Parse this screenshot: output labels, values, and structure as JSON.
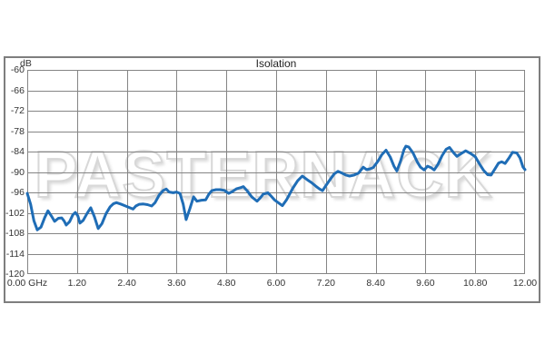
{
  "chart": {
    "title": "Isolation",
    "y_axis_unit_label": "dB",
    "watermark": "PASTERNACK"
  },
  "colors": {
    "line": "#1f6db6",
    "grid": "#858585",
    "frame_border": "#7e7e7e",
    "tick_text": "#333333",
    "title_text": "#1f1f1f",
    "watermark_outline": "#d8d8d8",
    "background": "#ffffff"
  },
  "chart_data": {
    "type": "line",
    "title": "Isolation",
    "xlabel": "GHz",
    "ylabel": "dB",
    "xlim": [
      0,
      12
    ],
    "ylim": [
      -120,
      -60
    ],
    "x_tick_step": 1.2,
    "y_tick_step": 6,
    "x_tick_labels": [
      "0.00 GHz",
      "1.20",
      "2.40",
      "3.60",
      "4.80",
      "6.00",
      "7.20",
      "8.40",
      "9.60",
      "10.80",
      "12.00"
    ],
    "y_tick_labels": [
      "-60",
      "-66",
      "-72",
      "-78",
      "-84",
      "-90",
      "-96",
      "-102",
      "-108",
      "-114",
      "-120"
    ],
    "grid": true,
    "legend": false,
    "series": [
      {
        "name": "Isolation",
        "color": "#1f6db6",
        "points": [
          [
            0.0,
            -96.3
          ],
          [
            0.08,
            -99.5
          ],
          [
            0.16,
            -104.3
          ],
          [
            0.24,
            -107.0
          ],
          [
            0.33,
            -106.2
          ],
          [
            0.42,
            -103.4
          ],
          [
            0.5,
            -101.4
          ],
          [
            0.58,
            -102.9
          ],
          [
            0.66,
            -104.5
          ],
          [
            0.75,
            -103.6
          ],
          [
            0.83,
            -103.5
          ],
          [
            0.89,
            -104.4
          ],
          [
            0.94,
            -105.6
          ],
          [
            1.02,
            -104.6
          ],
          [
            1.1,
            -102.6
          ],
          [
            1.16,
            -101.9
          ],
          [
            1.22,
            -102.9
          ],
          [
            1.27,
            -105.0
          ],
          [
            1.35,
            -104.2
          ],
          [
            1.44,
            -102.2
          ],
          [
            1.53,
            -100.5
          ],
          [
            1.62,
            -103.2
          ],
          [
            1.71,
            -106.6
          ],
          [
            1.8,
            -105.2
          ],
          [
            1.9,
            -102.2
          ],
          [
            2.0,
            -100.2
          ],
          [
            2.08,
            -99.3
          ],
          [
            2.15,
            -99.0
          ],
          [
            2.25,
            -99.4
          ],
          [
            2.35,
            -99.9
          ],
          [
            2.45,
            -100.4
          ],
          [
            2.55,
            -100.9
          ],
          [
            2.62,
            -100.0
          ],
          [
            2.7,
            -99.5
          ],
          [
            2.8,
            -99.4
          ],
          [
            2.9,
            -99.6
          ],
          [
            3.0,
            -100.0
          ],
          [
            3.08,
            -99.0
          ],
          [
            3.18,
            -96.8
          ],
          [
            3.28,
            -95.4
          ],
          [
            3.35,
            -95.0
          ],
          [
            3.42,
            -95.9
          ],
          [
            3.52,
            -96.1
          ],
          [
            3.6,
            -95.9
          ],
          [
            3.68,
            -96.3
          ],
          [
            3.76,
            -99.5
          ],
          [
            3.83,
            -104.0
          ],
          [
            3.92,
            -100.8
          ],
          [
            4.01,
            -97.3
          ],
          [
            4.09,
            -98.6
          ],
          [
            4.2,
            -98.3
          ],
          [
            4.3,
            -98.2
          ],
          [
            4.38,
            -96.5
          ],
          [
            4.45,
            -95.5
          ],
          [
            4.55,
            -95.2
          ],
          [
            4.65,
            -95.2
          ],
          [
            4.75,
            -95.4
          ],
          [
            4.86,
            -96.3
          ],
          [
            4.95,
            -95.7
          ],
          [
            5.05,
            -94.9
          ],
          [
            5.15,
            -94.6
          ],
          [
            5.21,
            -94.3
          ],
          [
            5.3,
            -95.5
          ],
          [
            5.41,
            -97.3
          ],
          [
            5.48,
            -98.0
          ],
          [
            5.54,
            -98.6
          ],
          [
            5.62,
            -97.6
          ],
          [
            5.69,
            -96.5
          ],
          [
            5.8,
            -96.1
          ],
          [
            5.88,
            -97.1
          ],
          [
            5.96,
            -98.2
          ],
          [
            6.05,
            -99.0
          ],
          [
            6.15,
            -99.9
          ],
          [
            6.25,
            -98.2
          ],
          [
            6.4,
            -94.8
          ],
          [
            6.52,
            -92.6
          ],
          [
            6.63,
            -91.2
          ],
          [
            6.75,
            -92.3
          ],
          [
            6.85,
            -93.1
          ],
          [
            6.95,
            -94.1
          ],
          [
            7.05,
            -95.0
          ],
          [
            7.12,
            -95.5
          ],
          [
            7.2,
            -94.0
          ],
          [
            7.3,
            -92.2
          ],
          [
            7.4,
            -90.6
          ],
          [
            7.49,
            -89.8
          ],
          [
            7.58,
            -90.3
          ],
          [
            7.68,
            -90.9
          ],
          [
            7.77,
            -91.2
          ],
          [
            7.88,
            -90.9
          ],
          [
            7.99,
            -90.3
          ],
          [
            8.1,
            -88.6
          ],
          [
            8.18,
            -89.3
          ],
          [
            8.26,
            -89.1
          ],
          [
            8.34,
            -88.7
          ],
          [
            8.45,
            -86.9
          ],
          [
            8.55,
            -84.9
          ],
          [
            8.65,
            -83.6
          ],
          [
            8.75,
            -85.6
          ],
          [
            8.84,
            -88.3
          ],
          [
            8.91,
            -89.7
          ],
          [
            9.0,
            -86.8
          ],
          [
            9.08,
            -83.5
          ],
          [
            9.13,
            -82.4
          ],
          [
            9.2,
            -82.7
          ],
          [
            9.3,
            -84.4
          ],
          [
            9.4,
            -87.0
          ],
          [
            9.48,
            -88.6
          ],
          [
            9.57,
            -89.4
          ],
          [
            9.65,
            -88.3
          ],
          [
            9.73,
            -88.7
          ],
          [
            9.81,
            -89.4
          ],
          [
            9.9,
            -87.8
          ],
          [
            10.0,
            -85.2
          ],
          [
            10.1,
            -83.3
          ],
          [
            10.18,
            -82.8
          ],
          [
            10.28,
            -84.4
          ],
          [
            10.36,
            -85.4
          ],
          [
            10.46,
            -84.6
          ],
          [
            10.57,
            -83.8
          ],
          [
            10.68,
            -84.5
          ],
          [
            10.8,
            -85.5
          ],
          [
            10.9,
            -87.6
          ],
          [
            11.0,
            -89.5
          ],
          [
            11.1,
            -90.8
          ],
          [
            11.18,
            -90.9
          ],
          [
            11.28,
            -89.0
          ],
          [
            11.36,
            -87.4
          ],
          [
            11.44,
            -87.0
          ],
          [
            11.52,
            -87.5
          ],
          [
            11.62,
            -85.8
          ],
          [
            11.7,
            -84.2
          ],
          [
            11.8,
            -84.4
          ],
          [
            11.88,
            -85.9
          ],
          [
            11.95,
            -88.5
          ],
          [
            12.0,
            -89.3
          ]
        ]
      }
    ]
  }
}
